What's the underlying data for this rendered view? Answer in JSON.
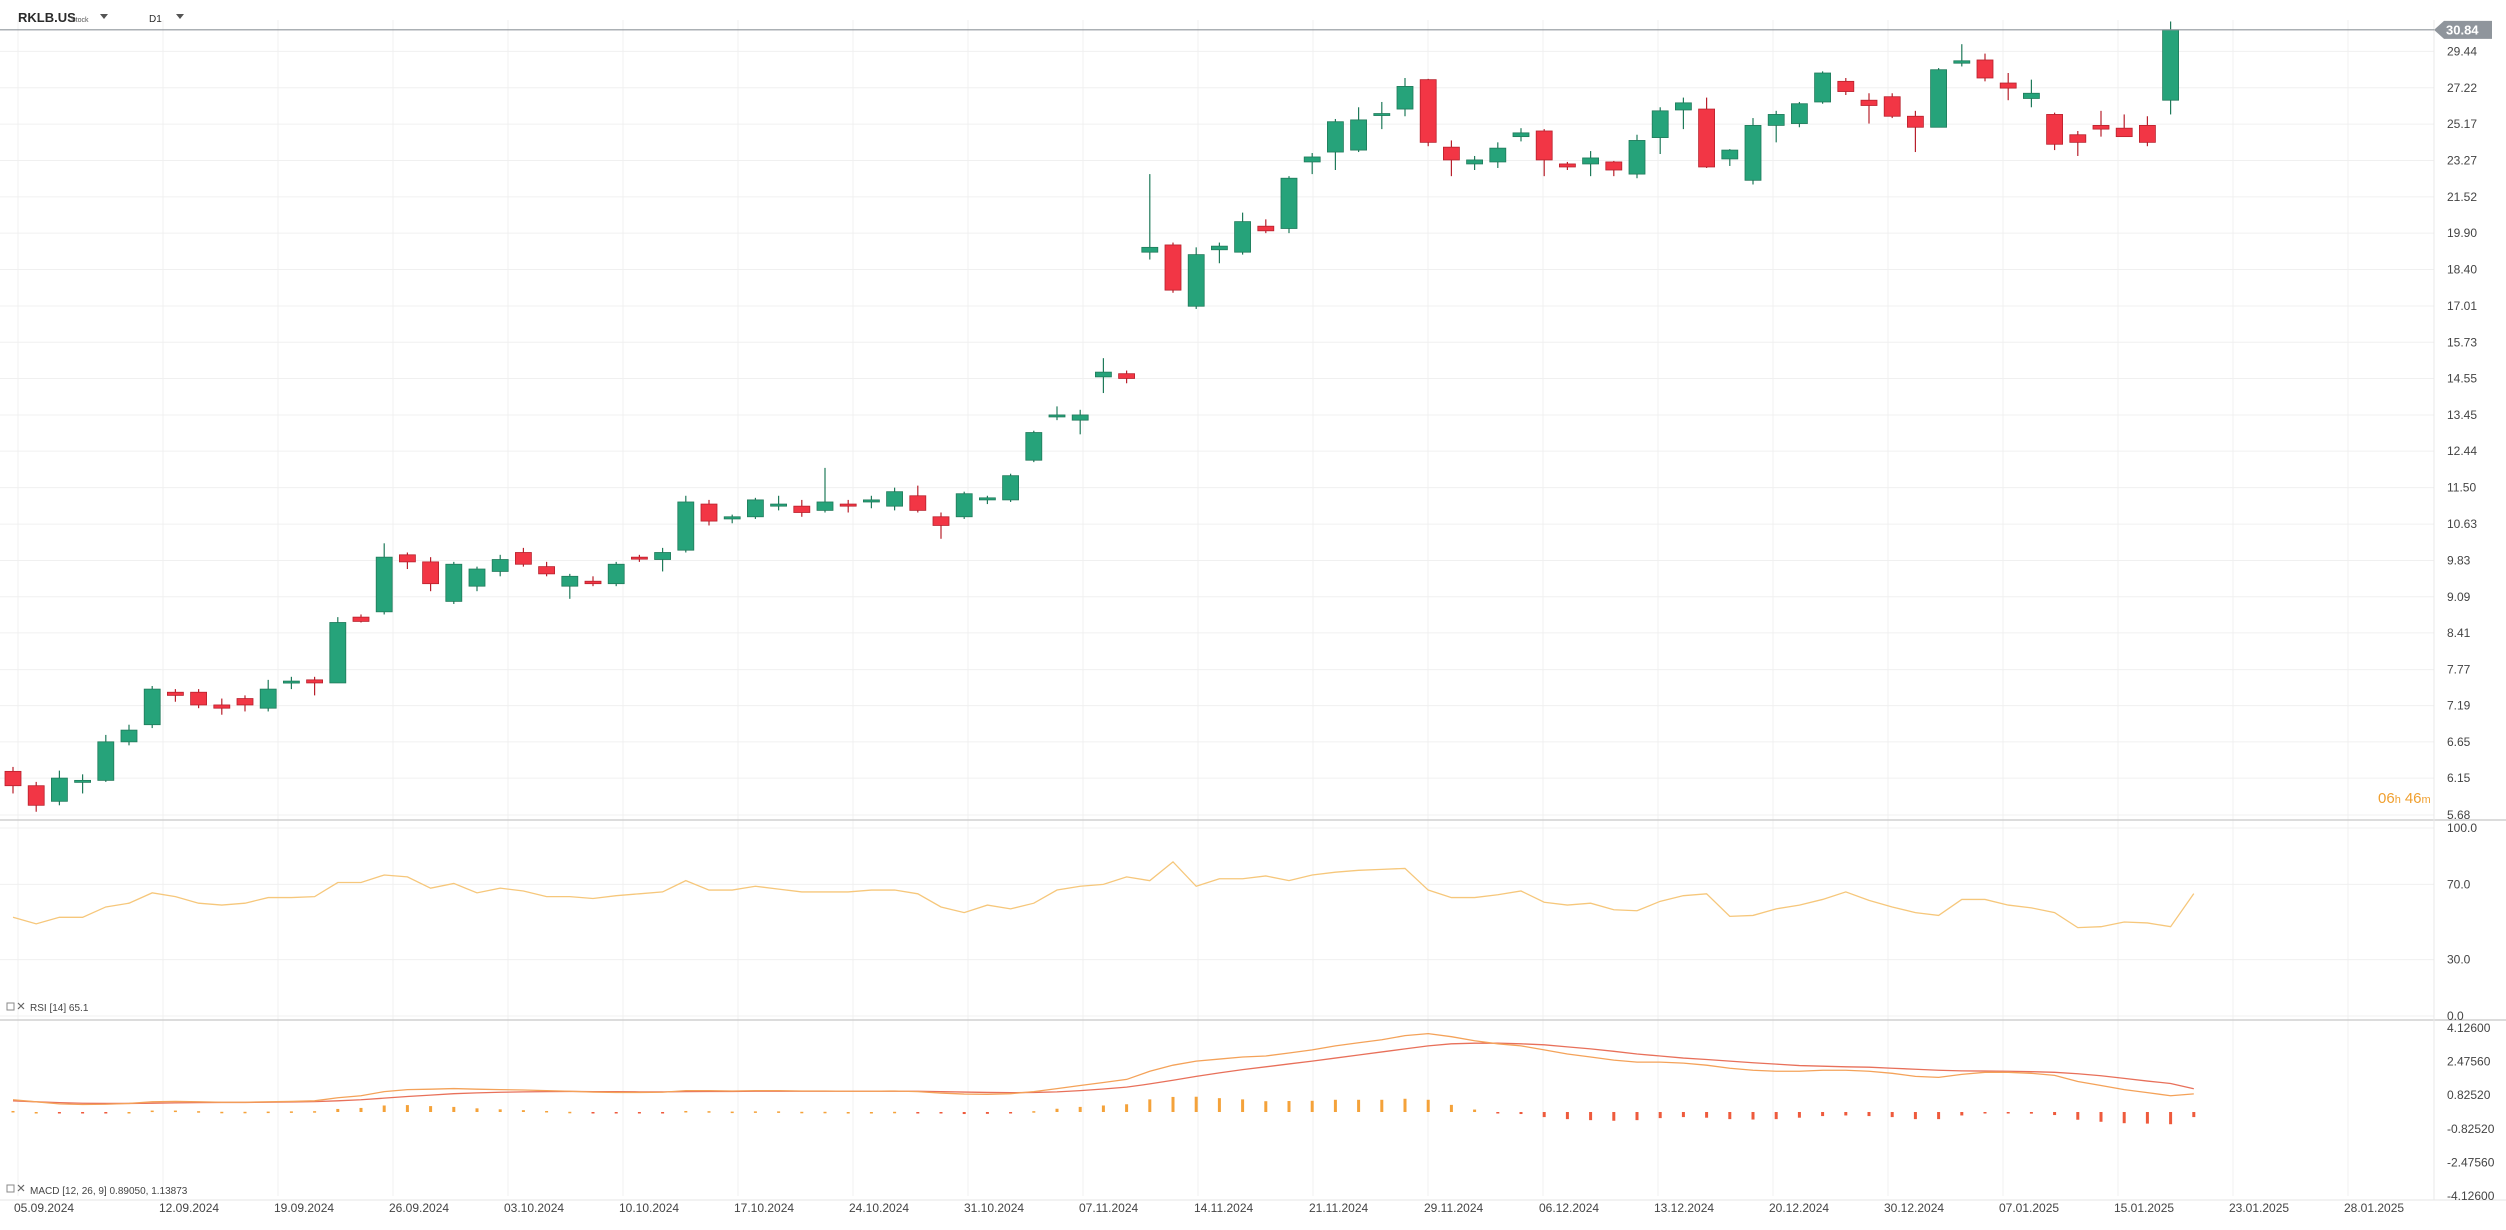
{
  "header": {
    "symbol": "RKLB.US",
    "asset_type": "Stock",
    "timeframe": "D1"
  },
  "countdown": {
    "hours": "06",
    "hours_unit": "h",
    "minutes": "46",
    "minutes_unit": "m"
  },
  "colors": {
    "up": "#26a37a",
    "down": "#f23645",
    "rsi": "#f6c77b",
    "macd_line": "#f4a259",
    "signal_line": "#e8705a",
    "hist_pos": "#f4a23a",
    "hist_neg": "#ee5a3c",
    "grid": "#f0f0f0",
    "last_price_bg": "#8f959c"
  },
  "chart_data": [
    {
      "type": "candlestick",
      "symbol": "RKLB.US",
      "last_price_label": "30.84",
      "ylim": [
        5.68,
        31.5
      ],
      "y_ticks": [
        "29.44",
        "27.22",
        "25.17",
        "23.27",
        "21.52",
        "19.90",
        "18.40",
        "17.01",
        "15.73",
        "14.55",
        "13.45",
        "12.44",
        "11.50",
        "10.63",
        "9.83",
        "9.09",
        "8.41",
        "7.77",
        "7.19",
        "6.65",
        "6.15",
        "5.68"
      ],
      "x_ticks": [
        "05.09.2024",
        "12.09.2024",
        "19.09.2024",
        "26.09.2024",
        "03.10.2024",
        "10.10.2024",
        "17.10.2024",
        "24.10.2024",
        "31.10.2024",
        "07.11.2024",
        "14.11.2024",
        "21.11.2024",
        "29.11.2024",
        "06.12.2024",
        "13.12.2024",
        "20.12.2024",
        "30.12.2024",
        "07.01.2025",
        "15.01.2025",
        "23.01.2025",
        "28.01.2025"
      ],
      "ohlc": [
        [
          6.24,
          6.3,
          5.95,
          6.05
        ],
        [
          6.05,
          6.1,
          5.72,
          5.8
        ],
        [
          5.85,
          6.25,
          5.8,
          6.15
        ],
        [
          6.1,
          6.2,
          5.95,
          6.12
        ],
        [
          6.12,
          6.75,
          6.1,
          6.65
        ],
        [
          6.65,
          6.9,
          6.6,
          6.82
        ],
        [
          6.9,
          7.5,
          6.85,
          7.45
        ],
        [
          7.4,
          7.45,
          7.25,
          7.35
        ],
        [
          7.4,
          7.45,
          7.15,
          7.2
        ],
        [
          7.2,
          7.3,
          7.05,
          7.15
        ],
        [
          7.3,
          7.35,
          7.1,
          7.2
        ],
        [
          7.15,
          7.6,
          7.1,
          7.45
        ],
        [
          7.55,
          7.65,
          7.45,
          7.58
        ],
        [
          7.6,
          7.65,
          7.35,
          7.55
        ],
        [
          7.55,
          8.7,
          7.55,
          8.6
        ],
        [
          8.7,
          8.75,
          8.6,
          8.62
        ],
        [
          8.8,
          10.2,
          8.75,
          9.9
        ],
        [
          9.95,
          10.0,
          9.65,
          9.8
        ],
        [
          9.8,
          9.9,
          9.2,
          9.35
        ],
        [
          9.0,
          9.8,
          8.95,
          9.75
        ],
        [
          9.3,
          9.7,
          9.2,
          9.65
        ],
        [
          9.6,
          9.95,
          9.5,
          9.85
        ],
        [
          10.0,
          10.1,
          9.7,
          9.75
        ],
        [
          9.7,
          9.8,
          9.5,
          9.55
        ],
        [
          9.3,
          9.55,
          9.05,
          9.5
        ],
        [
          9.4,
          9.5,
          9.3,
          9.35
        ],
        [
          9.35,
          9.8,
          9.3,
          9.75
        ],
        [
          9.9,
          9.95,
          9.8,
          9.88
        ],
        [
          9.85,
          10.1,
          9.6,
          10.0
        ],
        [
          10.05,
          11.3,
          10.0,
          11.15
        ],
        [
          11.1,
          11.2,
          10.6,
          10.7
        ],
        [
          10.75,
          10.85,
          10.65,
          10.8
        ],
        [
          10.8,
          11.25,
          10.75,
          11.2
        ],
        [
          11.05,
          11.3,
          10.95,
          11.1
        ],
        [
          11.05,
          11.2,
          10.8,
          10.9
        ],
        [
          10.95,
          12.0,
          10.9,
          11.15
        ],
        [
          11.1,
          11.2,
          10.9,
          11.05
        ],
        [
          11.15,
          11.3,
          11.0,
          11.2
        ],
        [
          11.05,
          11.5,
          10.95,
          11.4
        ],
        [
          11.3,
          11.55,
          10.9,
          10.95
        ],
        [
          10.8,
          10.9,
          10.3,
          10.6
        ],
        [
          10.8,
          11.4,
          10.75,
          11.35
        ],
        [
          11.2,
          11.3,
          11.1,
          11.25
        ],
        [
          11.2,
          11.85,
          11.15,
          11.8
        ],
        [
          12.2,
          13.0,
          12.15,
          12.95
        ],
        [
          13.4,
          13.7,
          13.3,
          13.45
        ],
        [
          13.3,
          13.6,
          12.9,
          13.45
        ],
        [
          14.6,
          15.2,
          14.1,
          14.75
        ],
        [
          14.7,
          14.8,
          14.4,
          14.55
        ],
        [
          19.1,
          22.6,
          18.8,
          19.3
        ],
        [
          19.4,
          19.5,
          17.5,
          17.6
        ],
        [
          17.0,
          19.3,
          16.9,
          19.0
        ],
        [
          19.2,
          19.5,
          18.65,
          19.35
        ],
        [
          19.1,
          20.8,
          19.0,
          20.4
        ],
        [
          20.2,
          20.5,
          19.9,
          20.0
        ],
        [
          20.1,
          22.5,
          19.9,
          22.4
        ],
        [
          23.2,
          23.65,
          22.6,
          23.45
        ],
        [
          23.7,
          25.45,
          22.8,
          25.3
        ],
        [
          23.8,
          26.1,
          23.7,
          25.4
        ],
        [
          25.7,
          26.4,
          24.9,
          25.75
        ],
        [
          26.0,
          27.8,
          25.6,
          27.3
        ],
        [
          27.7,
          27.75,
          24.0,
          24.2
        ],
        [
          23.95,
          24.3,
          22.5,
          23.3
        ],
        [
          23.1,
          23.5,
          22.8,
          23.3
        ],
        [
          23.2,
          24.2,
          22.9,
          23.9
        ],
        [
          24.5,
          24.95,
          24.25,
          24.7
        ],
        [
          24.8,
          24.9,
          22.5,
          23.3
        ],
        [
          23.1,
          23.2,
          22.8,
          22.95
        ],
        [
          23.1,
          23.75,
          22.5,
          23.4
        ],
        [
          23.2,
          23.25,
          22.5,
          22.8
        ],
        [
          22.6,
          24.6,
          22.4,
          24.3
        ],
        [
          24.45,
          26.1,
          23.6,
          25.9
        ],
        [
          25.95,
          26.65,
          24.9,
          26.35
        ],
        [
          26.0,
          26.65,
          22.9,
          22.95
        ],
        [
          23.35,
          23.85,
          23.0,
          23.8
        ],
        [
          22.3,
          25.5,
          22.1,
          25.1
        ],
        [
          25.1,
          25.9,
          24.2,
          25.7
        ],
        [
          25.2,
          26.4,
          25.0,
          26.3
        ],
        [
          26.4,
          28.2,
          26.3,
          28.1
        ],
        [
          27.6,
          27.8,
          26.8,
          27.0
        ],
        [
          26.5,
          26.9,
          25.2,
          26.2
        ],
        [
          26.7,
          26.9,
          25.5,
          25.6
        ],
        [
          25.6,
          25.9,
          23.7,
          25.0
        ],
        [
          25.0,
          28.4,
          25.0,
          28.3
        ],
        [
          28.7,
          29.9,
          28.5,
          28.85
        ],
        [
          28.9,
          29.3,
          27.6,
          27.8
        ],
        [
          27.5,
          28.1,
          26.5,
          27.2
        ],
        [
          26.6,
          27.7,
          26.1,
          26.9
        ],
        [
          25.7,
          25.8,
          23.8,
          24.1
        ],
        [
          24.6,
          24.8,
          23.5,
          24.2
        ],
        [
          25.1,
          25.9,
          24.5,
          24.9
        ],
        [
          24.95,
          25.7,
          24.6,
          24.5
        ],
        [
          25.1,
          25.6,
          24.0,
          24.2
        ],
        [
          26.5,
          31.4,
          25.7,
          30.84
        ]
      ]
    },
    {
      "type": "line",
      "indicator": "RSI",
      "label_name": "RSI",
      "label_params": "[14]",
      "label_value": "65.1",
      "ylim": [
        0,
        100
      ],
      "y_ticks": [
        "100.0",
        "70.0",
        "30.0",
        "0.0"
      ],
      "values": [
        52.5,
        49,
        52.5,
        52.5,
        58,
        60,
        65.5,
        63.5,
        60,
        59,
        60,
        63,
        63,
        63.5,
        71,
        71,
        75,
        74,
        68,
        70.5,
        65.5,
        68,
        66.5,
        63.5,
        63.5,
        62.5,
        64,
        65,
        66,
        72,
        67,
        67,
        69,
        67.5,
        66,
        66,
        66,
        67,
        67,
        65,
        58,
        55,
        59,
        57,
        60,
        67,
        69,
        70,
        74,
        72,
        82,
        69,
        73,
        73,
        74.5,
        72,
        75,
        76.5,
        77.5,
        78,
        78.5,
        67,
        63,
        63,
        64.5,
        66.5,
        60.5,
        59,
        60,
        56.5,
        56,
        61,
        64,
        65,
        53,
        53.5,
        57,
        59,
        62,
        66,
        61.5,
        58,
        55,
        53.5,
        62,
        62,
        59,
        57.5,
        55,
        47,
        47.5,
        50,
        49.5,
        47.5,
        65.1
      ]
    },
    {
      "type": "line+bar",
      "indicator": "MACD",
      "label_name": "MACD",
      "label_params": "[12, 26, 9]",
      "label_value1": "0.89050",
      "label_value2": "1.13873",
      "ylim": [
        -4.126,
        4.126
      ],
      "y_ticks": [
        "4.12600",
        "2.47560",
        "0.82520",
        "-0.82520",
        "-2.47560",
        "-4.12600"
      ],
      "macd": [
        0.6,
        0.5,
        0.4,
        0.37,
        0.38,
        0.42,
        0.5,
        0.52,
        0.5,
        0.48,
        0.48,
        0.5,
        0.52,
        0.55,
        0.7,
        0.8,
        1.0,
        1.1,
        1.12,
        1.15,
        1.12,
        1.1,
        1.08,
        1.05,
        1.02,
        0.98,
        0.96,
        0.96,
        0.97,
        1.05,
        1.05,
        1.03,
        1.05,
        1.05,
        1.03,
        1.03,
        1.02,
        1.02,
        1.03,
        1.0,
        0.93,
        0.88,
        0.87,
        0.9,
        1.0,
        1.15,
        1.3,
        1.45,
        1.6,
        2.0,
        2.3,
        2.5,
        2.6,
        2.7,
        2.75,
        2.9,
        3.05,
        3.25,
        3.4,
        3.55,
        3.75,
        3.85,
        3.7,
        3.5,
        3.35,
        3.25,
        3.05,
        2.85,
        2.7,
        2.55,
        2.45,
        2.45,
        2.4,
        2.3,
        2.15,
        2.05,
        2.0,
        2.0,
        2.05,
        2.05,
        2.0,
        1.9,
        1.75,
        1.7,
        1.85,
        1.95,
        1.95,
        1.9,
        1.8,
        1.5,
        1.3,
        1.1,
        0.95,
        0.8,
        0.89
      ],
      "signal": [
        0.55,
        0.5,
        0.46,
        0.43,
        0.42,
        0.42,
        0.43,
        0.45,
        0.46,
        0.47,
        0.47,
        0.48,
        0.49,
        0.51,
        0.55,
        0.6,
        0.68,
        0.76,
        0.83,
        0.9,
        0.94,
        0.97,
        0.99,
        1.0,
        1.01,
        1.0,
        1.0,
        0.99,
        0.99,
        1.0,
        1.01,
        1.01,
        1.02,
        1.02,
        1.02,
        1.02,
        1.02,
        1.02,
        1.02,
        1.02,
        1.0,
        0.98,
        0.96,
        0.95,
        0.96,
        0.99,
        1.05,
        1.13,
        1.22,
        1.38,
        1.56,
        1.75,
        1.92,
        2.08,
        2.22,
        2.36,
        2.5,
        2.65,
        2.8,
        2.95,
        3.1,
        3.25,
        3.35,
        3.38,
        3.38,
        3.35,
        3.3,
        3.2,
        3.1,
        2.98,
        2.85,
        2.75,
        2.65,
        2.58,
        2.5,
        2.42,
        2.35,
        2.28,
        2.25,
        2.22,
        2.2,
        2.15,
        2.1,
        2.05,
        2.02,
        2.01,
        2.0,
        1.98,
        1.95,
        1.88,
        1.78,
        1.65,
        1.52,
        1.4,
        1.14
      ],
      "histogram": [
        0.05,
        0.0,
        -0.06,
        -0.06,
        -0.04,
        0.0,
        0.07,
        0.07,
        0.04,
        0.01,
        0.01,
        0.02,
        0.03,
        0.04,
        0.15,
        0.2,
        0.32,
        0.34,
        0.29,
        0.25,
        0.18,
        0.13,
        0.09,
        0.05,
        0.01,
        -0.02,
        -0.04,
        -0.03,
        -0.02,
        0.05,
        0.04,
        0.02,
        0.03,
        0.03,
        0.01,
        0.01,
        0.0,
        0.0,
        0.01,
        -0.02,
        -0.07,
        -0.1,
        -0.09,
        -0.05,
        0.04,
        0.16,
        0.25,
        0.32,
        0.38,
        0.62,
        0.74,
        0.75,
        0.68,
        0.62,
        0.53,
        0.54,
        0.55,
        0.6,
        0.6,
        0.6,
        0.65,
        0.6,
        0.35,
        0.12,
        -0.03,
        -0.1,
        -0.25,
        -0.35,
        -0.4,
        -0.43,
        -0.4,
        -0.3,
        -0.25,
        -0.28,
        -0.35,
        -0.37,
        -0.35,
        -0.28,
        -0.2,
        -0.17,
        -0.2,
        -0.25,
        -0.35,
        -0.35,
        -0.17,
        -0.06,
        -0.05,
        -0.08,
        -0.15,
        -0.38,
        -0.48,
        -0.55,
        -0.57,
        -0.6,
        -0.25
      ]
    }
  ]
}
